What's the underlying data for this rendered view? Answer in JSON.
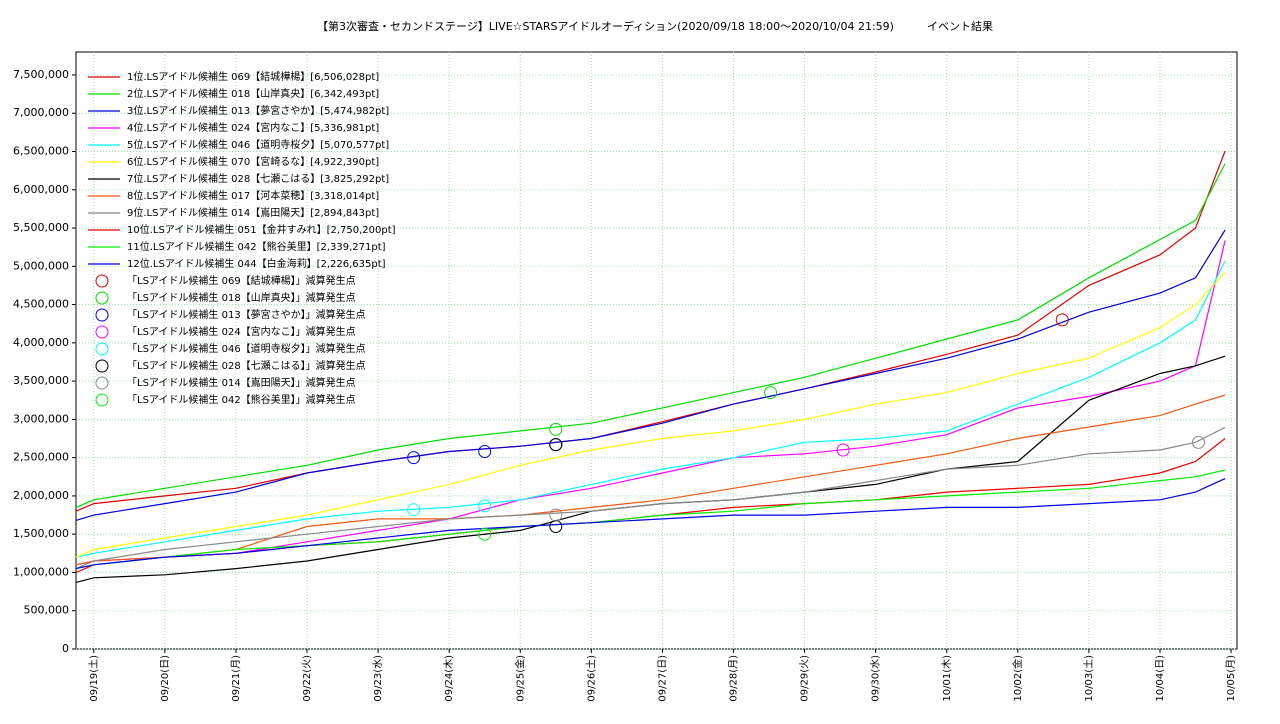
{
  "chart_data": {
    "type": "line",
    "title": "【第3次審査・セカンドステージ】LIVE☆STARSアイドルオーディション(2020/09/18 18:00～2020/10/04 21:59)　　　イベント結果",
    "x": [
      "2020-09-18T18:00",
      "2020-09-19T00:00",
      "2020-09-20T00:00",
      "2020-09-21T00:00",
      "2020-09-22T00:00",
      "2020-09-23T00:00",
      "2020-09-24T00:00",
      "2020-09-25T00:00",
      "2020-09-26T00:00",
      "2020-09-27T00:00",
      "2020-09-28T00:00",
      "2020-09-29T00:00",
      "2020-09-30T00:00",
      "2020-10-01T00:00",
      "2020-10-02T00:00",
      "2020-10-03T00:00",
      "2020-10-04T00:00",
      "2020-10-04T12:00",
      "2020-10-04T21:59"
    ],
    "xlim": [
      "2020-09-18T18:00",
      "2020-10-05T02:00"
    ],
    "xticks": [
      {
        "value": "2020-09-19T00:00",
        "label": "09/19(土)"
      },
      {
        "value": "2020-09-20T00:00",
        "label": "09/20(日)"
      },
      {
        "value": "2020-09-21T00:00",
        "label": "09/21(月)"
      },
      {
        "value": "2020-09-22T00:00",
        "label": "09/22(火)"
      },
      {
        "value": "2020-09-23T00:00",
        "label": "09/23(水)"
      },
      {
        "value": "2020-09-24T00:00",
        "label": "09/24(木)"
      },
      {
        "value": "2020-09-25T00:00",
        "label": "09/25(金)"
      },
      {
        "value": "2020-09-26T00:00",
        "label": "09/26(土)"
      },
      {
        "value": "2020-09-27T00:00",
        "label": "09/27(日)"
      },
      {
        "value": "2020-09-28T00:00",
        "label": "09/28(月)"
      },
      {
        "value": "2020-09-29T00:00",
        "label": "09/29(火)"
      },
      {
        "value": "2020-09-30T00:00",
        "label": "09/30(水)"
      },
      {
        "value": "2020-10-01T00:00",
        "label": "10/01(木)"
      },
      {
        "value": "2020-10-02T00:00",
        "label": "10/02(金)"
      },
      {
        "value": "2020-10-03T00:00",
        "label": "10/03(土)"
      },
      {
        "value": "2020-10-04T00:00",
        "label": "10/04(日)"
      },
      {
        "value": "2020-10-05T00:00",
        "label": "10/05(月)"
      }
    ],
    "ylim": [
      0,
      7800000
    ],
    "yticks": [
      0,
      {
        "value": 500000,
        "label": "500,000"
      },
      {
        "value": 1000000,
        "label": "1,000,000"
      },
      {
        "value": 1500000,
        "label": "1,500,000"
      },
      {
        "value": 2000000,
        "label": "2,000,000"
      },
      {
        "value": 2500000,
        "label": "2,500,000"
      },
      {
        "value": 3000000,
        "label": "3,000,000"
      },
      {
        "value": 3500000,
        "label": "3,500,000"
      },
      {
        "value": 4000000,
        "label": "4,000,000"
      },
      {
        "value": 4500000,
        "label": "4,500,000"
      },
      {
        "value": 5000000,
        "label": "5,000,000"
      },
      {
        "value": 5500000,
        "label": "5,500,000"
      },
      {
        "value": 6000000,
        "label": "6,000,000"
      },
      {
        "value": 6500000,
        "label": "6,500,000"
      },
      {
        "value": 7000000,
        "label": "7,000,000"
      },
      {
        "value": 7500000,
        "label": "7,500,000"
      }
    ],
    "grid": true,
    "legend": "upper-left",
    "series": [
      {
        "name": "1位.LSアイドル候補生 069【結城樺楊】[6,506,028pt]",
        "color": "#dd0000",
        "values": [
          1800000,
          1900000,
          2000000,
          2100000,
          2300000,
          2450000,
          2580000,
          2650000,
          2750000,
          2970000,
          3200000,
          3400000,
          3620000,
          3850000,
          4100000,
          4750000,
          5150000,
          5500000,
          6506028
        ]
      },
      {
        "name": "2位.LSアイドル候補生 018【山岸真央】[6,342,493pt]",
        "color": "#00dd00",
        "values": [
          1850000,
          1950000,
          2100000,
          2250000,
          2400000,
          2600000,
          2750000,
          2850000,
          2950000,
          3150000,
          3350000,
          3550000,
          3800000,
          4050000,
          4300000,
          4850000,
          5350000,
          5600000,
          6342493
        ]
      },
      {
        "name": "3位.LSアイドル候補生 013【夢宮さやか】[5,474,982pt]",
        "color": "#0000dd",
        "values": [
          1680000,
          1750000,
          1900000,
          2050000,
          2300000,
          2450000,
          2580000,
          2650000,
          2750000,
          2950000,
          3200000,
          3400000,
          3600000,
          3800000,
          4050000,
          4400000,
          4650000,
          4850000,
          5474982
        ]
      },
      {
        "name": "4位.LSアイドル候補生 024【宮内なこ】[5,336,981pt]",
        "color": "#ff00ff",
        "values": [
          1100000,
          1150000,
          1200000,
          1250000,
          1400000,
          1550000,
          1700000,
          1950000,
          2100000,
          2300000,
          2500000,
          2550000,
          2650000,
          2800000,
          3150000,
          3300000,
          3500000,
          3700000,
          5336981
        ]
      },
      {
        "name": "5位.LSアイドル候補生 046【道明寺桜夕】[5,070,577pt]",
        "color": "#00ffff",
        "values": [
          1200000,
          1250000,
          1400000,
          1550000,
          1700000,
          1800000,
          1850000,
          1950000,
          2150000,
          2350000,
          2500000,
          2700000,
          2750000,
          2850000,
          3200000,
          3550000,
          4000000,
          4300000,
          5070577
        ]
      },
      {
        "name": "6位.LSアイドル候補生 070【宮崎るな】[4,922,390pt]",
        "color": "#ffff00",
        "values": [
          1200000,
          1300000,
          1450000,
          1600000,
          1750000,
          1950000,
          2150000,
          2400000,
          2600000,
          2750000,
          2850000,
          3000000,
          3200000,
          3350000,
          3600000,
          3800000,
          4200000,
          4500000,
          4922390
        ]
      },
      {
        "name": "7位.LSアイドル候補生 028【七瀬こはる】[3,825,292pt]",
        "color": "#000000",
        "values": [
          870000,
          930000,
          970000,
          1050000,
          1150000,
          1300000,
          1450000,
          1550000,
          1800000,
          1900000,
          1950000,
          2050000,
          2150000,
          2350000,
          2450000,
          3250000,
          3600000,
          3700000,
          3825292
        ]
      },
      {
        "name": "8位.LSアイドル候補生 017【河本菜穂】[3,318,014pt]",
        "color": "#f05a14",
        "values": [
          1100000,
          1150000,
          1200000,
          1300000,
          1600000,
          1700000,
          1700000,
          1750000,
          1850000,
          1950000,
          2100000,
          2250000,
          2400000,
          2550000,
          2750000,
          2900000,
          3050000,
          3200000,
          3318014
        ]
      },
      {
        "name": "9位.LSアイドル候補生 014【嶌田陽天】[2,894,843pt]",
        "color": "#888888",
        "values": [
          1050000,
          1150000,
          1300000,
          1400000,
          1500000,
          1600000,
          1700000,
          1750000,
          1800000,
          1900000,
          1950000,
          2050000,
          2200000,
          2350000,
          2400000,
          2550000,
          2600000,
          2700000,
          2894843
        ]
      },
      {
        "name": "10位.LSアイドル候補生 051【金井すみれ】[2,750,200pt]",
        "color": "#ee0000",
        "values": [
          1000000,
          1100000,
          1200000,
          1250000,
          1350000,
          1400000,
          1500000,
          1600000,
          1650000,
          1750000,
          1850000,
          1900000,
          1950000,
          2050000,
          2100000,
          2150000,
          2300000,
          2450000,
          2750200
        ]
      },
      {
        "name": "11位.LSアイドル候補生 042【熊谷美里】[2,339,271pt]",
        "color": "#00ee00",
        "values": [
          1050000,
          1100000,
          1200000,
          1300000,
          1350000,
          1400000,
          1500000,
          1600000,
          1650000,
          1750000,
          1800000,
          1900000,
          1950000,
          2000000,
          2050000,
          2100000,
          2200000,
          2250000,
          2339271
        ]
      },
      {
        "name": "12位.LSアイドル候補生 044【白金海莉】[2,226,635pt]",
        "color": "#0000ee",
        "values": [
          1050000,
          1100000,
          1200000,
          1250000,
          1350000,
          1450000,
          1550000,
          1600000,
          1650000,
          1700000,
          1750000,
          1750000,
          1800000,
          1850000,
          1850000,
          1900000,
          1950000,
          2050000,
          2226635
        ]
      }
    ],
    "markers": [
      {
        "name": "「LSアイドル候補生 069【結城樺楊】」減算発生点",
        "color": "#dd0000",
        "x": [
          "2020-10-02T15:00"
        ],
        "values": [
          4300000
        ]
      },
      {
        "name": "「LSアイドル候補生 018【山岸真央】」減算発生点",
        "color": "#00dd00",
        "x": [
          "2020-09-25T12:00",
          "2020-09-28T12:30"
        ],
        "values": [
          2870000,
          3350000
        ]
      },
      {
        "name": "「LSアイドル候補生 013【夢宮さやか】」減算発生点",
        "color": "#0000dd",
        "x": [
          "2020-09-23T12:00",
          "2020-09-24T12:00",
          "2020-09-25T12:00"
        ],
        "values": [
          2500000,
          2580000,
          2670000
        ]
      },
      {
        "name": "「LSアイドル候補生 024【宮内なこ】」減算発生点",
        "color": "#ff00ff",
        "x": [
          "2020-09-29T13:00"
        ],
        "values": [
          2600000
        ]
      },
      {
        "name": "「LSアイドル候補生 046【道明寺桜夕】」減算発生点",
        "color": "#00ffff",
        "x": [
          "2020-09-23T12:00",
          "2020-09-24T12:00"
        ],
        "values": [
          1820000,
          1870000
        ]
      },
      {
        "name": "「LSアイドル候補生 028【七瀬こはる】」減算発生点",
        "color": "#000000",
        "x": [
          "2020-09-25T12:00",
          "2020-09-25T12:00"
        ],
        "values": [
          2670000,
          1600000
        ]
      },
      {
        "name": "「LSアイドル候補生 014【嶌田陽天】」減算発生点",
        "color": "#888888",
        "x": [
          "2020-09-25T12:00",
          "2020-10-04T13:00"
        ],
        "values": [
          1750000,
          2700000
        ]
      },
      {
        "name": "「LSアイドル候補生 042【熊谷美里】」減算発生点",
        "color": "#00ee00",
        "x": [
          "2020-09-24T12:00"
        ],
        "values": [
          1500000
        ]
      }
    ]
  }
}
